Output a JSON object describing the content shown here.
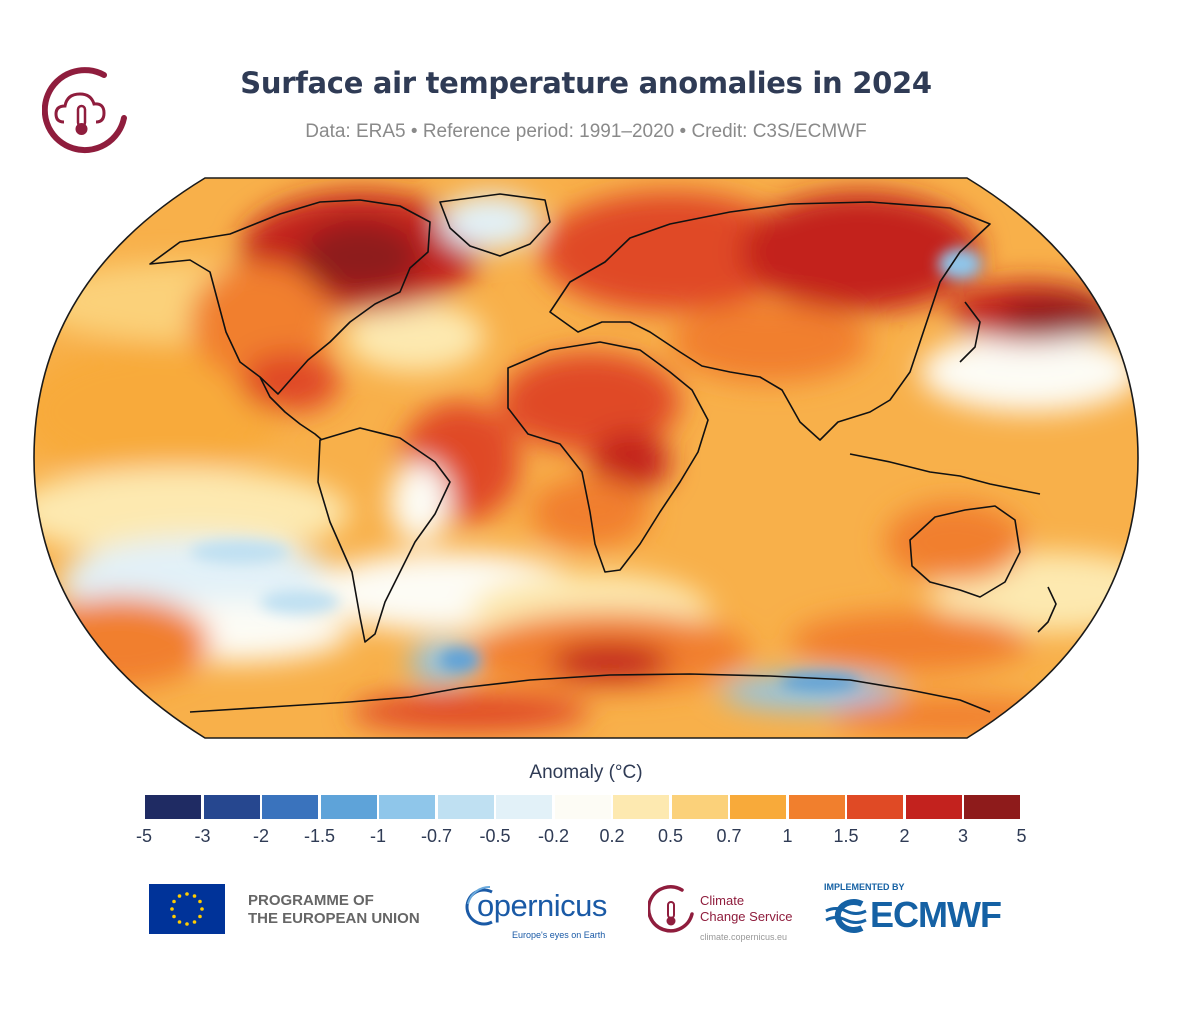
{
  "header": {
    "title": "Surface air temperature anomalies in 2024",
    "subtitle": "Data: ERA5 • Reference period: 1991–2020 • Credit: C3S/ECMWF"
  },
  "legend": {
    "title": "Anomaly (°C)",
    "colors": [
      "#1f2b63",
      "#26478f",
      "#3a73bd",
      "#5ea3d9",
      "#8fc6ea",
      "#bfe0f2",
      "#e2f1f8",
      "#fdfcf5",
      "#fde9b0",
      "#fbd17a",
      "#f8aa3a",
      "#f17f2d",
      "#e04a25",
      "#c3221e",
      "#8e1b1b"
    ],
    "ticks": [
      "-5",
      "-3",
      "-2",
      "-1.5",
      "-1",
      "-0.7",
      "-0.5",
      "-0.2",
      "0.2",
      "0.5",
      "0.7",
      "1",
      "1.5",
      "2",
      "3",
      "5"
    ]
  },
  "footer": {
    "eu_line1": "PROGRAMME OF",
    "eu_line2": "THE EUROPEAN UNION",
    "copernicus_word": "opernicus",
    "copernicus_tagline": "Europe's eyes on Earth",
    "ccs_line1": "Climate",
    "ccs_line2": "Change Service",
    "ccs_url": "climate.copernicus.eu",
    "ecmwf_implemented": "IMPLEMENTED BY",
    "ecmwf_word": "ECMWF"
  },
  "colors": {
    "title": "#2f3b55",
    "c3s_brand": "#8f1d3d",
    "copernicus_brand": "#1a5aa6",
    "ecmwf_brand": "#1561a4"
  }
}
